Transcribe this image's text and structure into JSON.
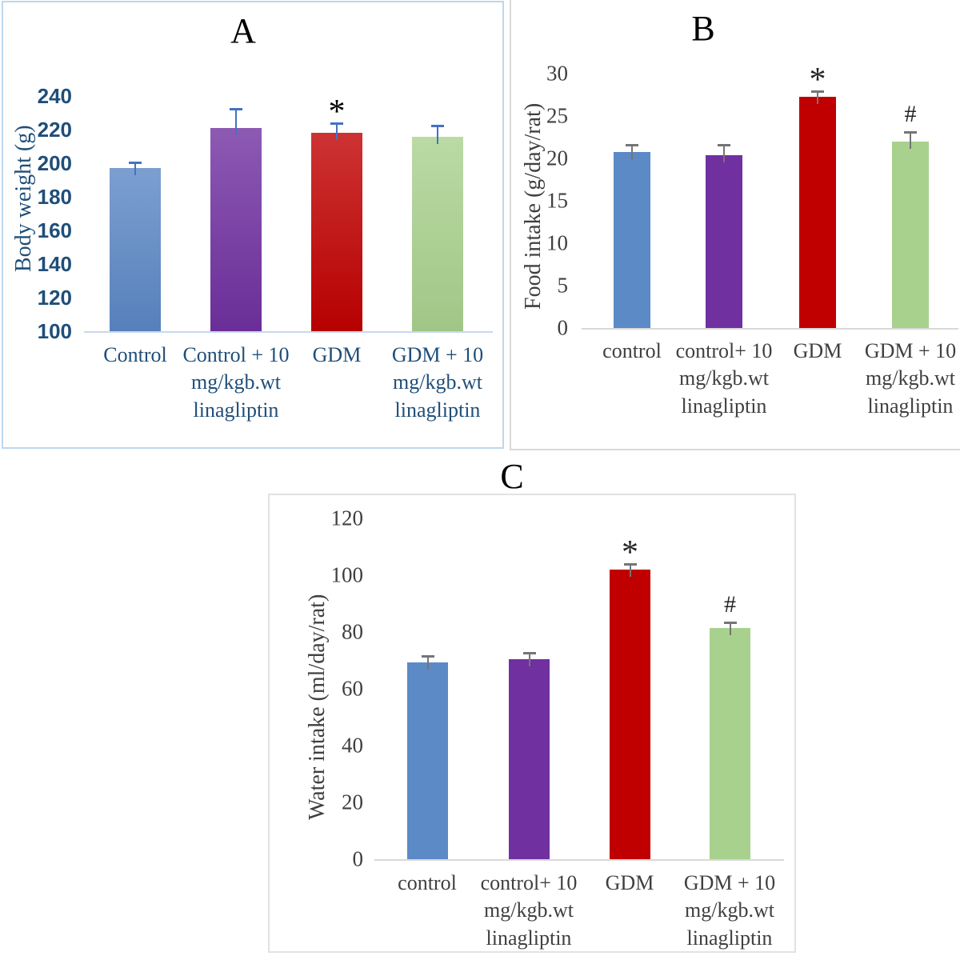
{
  "chart_data": [
    {
      "id": "A",
      "type": "bar",
      "title": "A",
      "xlabel": "",
      "ylabel": "Body weight (g)",
      "categories": [
        "Control",
        "Control + 10\nmg/kgb.wt\nlinagliptin",
        "GDM",
        "GDM + 10\nmg/kgb.wt\nlinagliptin"
      ],
      "values": [
        197,
        221,
        218,
        215.5
      ],
      "errors": [
        3,
        11,
        5.5,
        6.5
      ],
      "annotations": [
        "",
        "",
        "*",
        ""
      ],
      "ylim": [
        100,
        240
      ],
      "yticks": [
        100,
        120,
        140,
        160,
        180,
        200,
        220,
        240
      ],
      "grid": false,
      "legend": "none",
      "bar_colors": [
        "#5B87C5",
        "#7030A0",
        "#C00000",
        "#A9D18E"
      ],
      "error_color": "#4472C4",
      "annotation_color": "#000000",
      "text_color": "#1F4E79",
      "border_color": "#BDD7EE"
    },
    {
      "id": "B",
      "type": "bar",
      "title": "B",
      "xlabel": "",
      "ylabel": "Food intake (g/day/rat)",
      "categories": [
        "control",
        "control+ 10\nmg/kgb.wt\nlinagliptin",
        "GDM",
        "GDM + 10\nmg/kgb.wt\nlinagliptin"
      ],
      "values": [
        20.8,
        20.4,
        27.3,
        22
      ],
      "errors": [
        0.7,
        1.1,
        0.5,
        1
      ],
      "annotations": [
        "",
        "",
        "*",
        "#"
      ],
      "ylim": [
        0,
        30
      ],
      "yticks": [
        0,
        5,
        10,
        15,
        20,
        25,
        30
      ],
      "grid": false,
      "legend": "none",
      "bar_colors": [
        "#5B8AC6",
        "#7030A0",
        "#C00000",
        "#A9D18E"
      ],
      "error_color": "#757575",
      "annotation_color": "#262626",
      "text_color": "#3F3F3F",
      "border_color": "#D9D9D9"
    },
    {
      "id": "C",
      "type": "bar",
      "title": "C",
      "xlabel": "",
      "ylabel": "Water intake (ml/day/rat)",
      "categories": [
        "control",
        "control+ 10\nmg/kgb.wt\nlinagliptin",
        "GDM",
        "GDM + 10\nmg/kgb.wt\nlinagliptin"
      ],
      "values": [
        69.3,
        70.3,
        102,
        81.5
      ],
      "errors": [
        2,
        2.2,
        1.8,
        1.5
      ],
      "annotations": [
        "",
        "",
        "*",
        "#"
      ],
      "ylim": [
        0,
        120
      ],
      "yticks": [
        0,
        20,
        40,
        60,
        80,
        100,
        120
      ],
      "grid": false,
      "legend": "none",
      "bar_colors": [
        "#5B8AC6",
        "#7030A0",
        "#C00000",
        "#A9D18E"
      ],
      "error_color": "#757575",
      "annotation_color": "#262626",
      "text_color": "#3F3F3F",
      "border_color": "#D9D9D9"
    }
  ]
}
